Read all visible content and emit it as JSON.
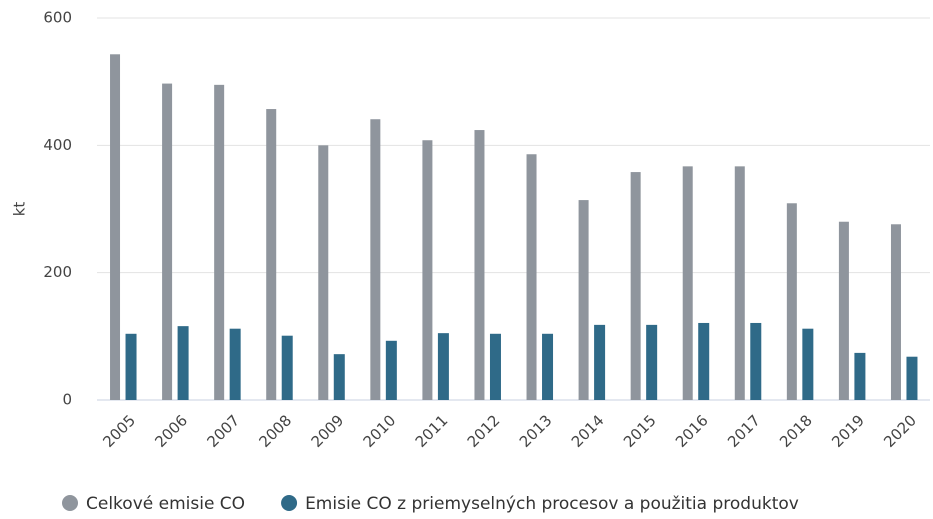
{
  "chart_data": {
    "type": "bar",
    "ylabel": "kt",
    "categories": [
      "2005",
      "2006",
      "2007",
      "2008",
      "2009",
      "2010",
      "2011",
      "2012",
      "2013",
      "2014",
      "2015",
      "2016",
      "2017",
      "2018",
      "2019",
      "2020"
    ],
    "series": [
      {
        "name": "Celkové emisie CO",
        "color": "#8f959d",
        "values": [
          543,
          497,
          495,
          457,
          400,
          441,
          408,
          424,
          386,
          314,
          358,
          367,
          367,
          309,
          280,
          276
        ]
      },
      {
        "name": "Emisie CO z priemyselných procesov a použitia produktov",
        "color": "#2f6a88",
        "values": [
          104,
          116,
          112,
          101,
          72,
          93,
          105,
          104,
          104,
          118,
          118,
          121,
          121,
          112,
          74,
          68
        ]
      }
    ],
    "ylim": [
      0,
      600
    ],
    "yticks": [
      0,
      200,
      400,
      600
    ],
    "grid": true
  }
}
